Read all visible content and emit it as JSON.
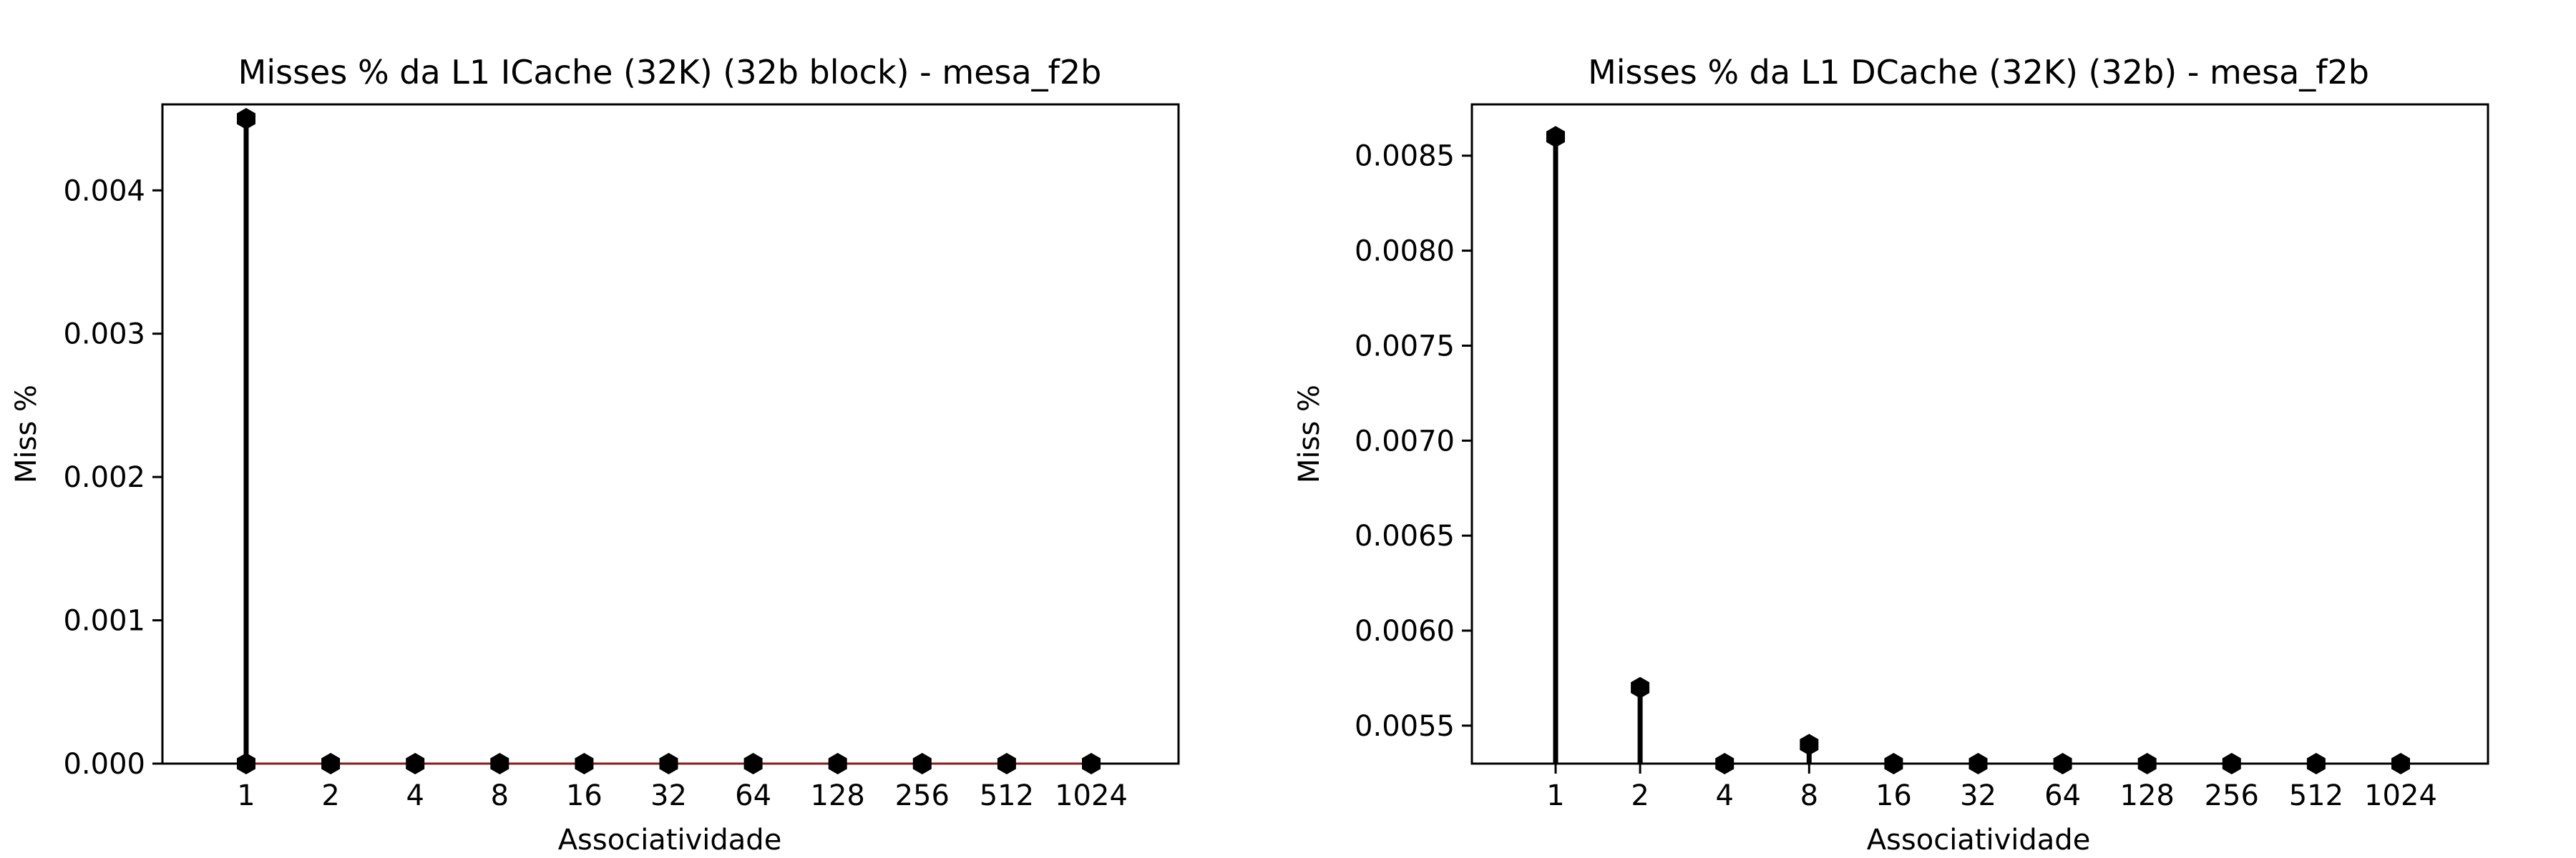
{
  "chart_data": [
    {
      "type": "stem",
      "title": "Misses % da L1 ICache (32K) (32b block) - mesa_f2b",
      "xlabel": "Associatividade",
      "ylabel": "Miss %",
      "categories": [
        "1",
        "2",
        "4",
        "8",
        "16",
        "32",
        "64",
        "128",
        "256",
        "512",
        "1024"
      ],
      "values": [
        0.0045,
        0,
        0,
        0,
        0,
        0,
        0,
        0,
        0,
        0,
        0
      ],
      "ylim": [
        0,
        0.0046
      ],
      "yticks": [
        "0.000",
        "0.001",
        "0.002",
        "0.003",
        "0.004"
      ],
      "ytick_values": [
        0,
        0.001,
        0.002,
        0.003,
        0.004
      ],
      "baseline": 0,
      "grid": false,
      "marker": "hexagon",
      "stem_color": "#000000",
      "baseline_color": "#8b1a1a"
    },
    {
      "type": "stem",
      "title": "Misses % da L1 DCache (32K) (32b) - mesa_f2b",
      "xlabel": "Associatividade",
      "ylabel": "Miss %",
      "categories": [
        "1",
        "2",
        "4",
        "8",
        "16",
        "32",
        "64",
        "128",
        "256",
        "512",
        "1024"
      ],
      "values": [
        0.0086,
        0.0057,
        0.0053,
        0.0054,
        0.0053,
        0.0053,
        0.0053,
        0.0053,
        0.0053,
        0.0053,
        0.0053
      ],
      "ylim": [
        0.0053,
        0.00877
      ],
      "yticks": [
        "0.0055",
        "0.0060",
        "0.0065",
        "0.0070",
        "0.0075",
        "0.0080",
        "0.0085"
      ],
      "ytick_values": [
        0.0055,
        0.006,
        0.0065,
        0.007,
        0.0075,
        0.008,
        0.0085
      ],
      "baseline": 0,
      "grid": false,
      "marker": "hexagon",
      "stem_color": "#000000",
      "baseline_color": "#8b1a1a"
    }
  ]
}
